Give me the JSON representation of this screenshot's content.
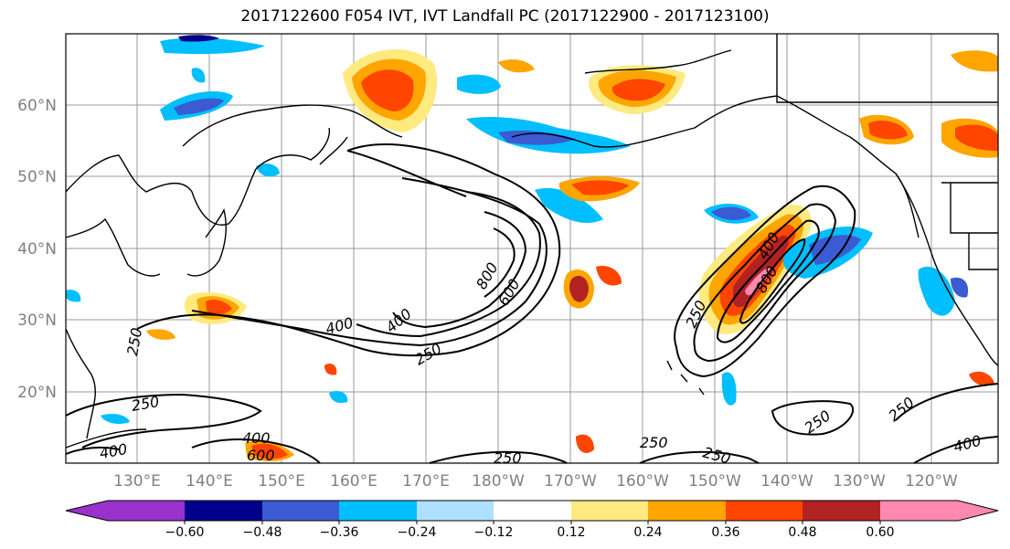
{
  "title": "2017122600 F054 IVT, IVT Landfall PC (2017122900 - 2017123100)",
  "map": {
    "lon_labels": [
      "130°E",
      "140°E",
      "150°E",
      "160°E",
      "170°E",
      "180°W",
      "170°W",
      "160°W",
      "150°W",
      "140°W",
      "130°W",
      "120°W"
    ],
    "lat_labels": [
      "60°N",
      "50°N",
      "40°N",
      "30°N",
      "20°N"
    ],
    "contour_labels": [
      "250",
      "400",
      "250",
      "400",
      "600",
      "250",
      "400",
      "800",
      "600",
      "400",
      "250",
      "250",
      "800",
      "400",
      "250",
      "250",
      "250",
      "400",
      "250"
    ]
  },
  "colorbar": {
    "ticks": [
      "−0.60",
      "−0.48",
      "−0.36",
      "−0.24",
      "−0.12",
      "0.12",
      "0.24",
      "0.36",
      "0.48",
      "0.60"
    ],
    "colors": [
      "#9932cc",
      "#00008b",
      "#3a5bd1",
      "#00bfff",
      "#b0e0ff",
      "#ffffff",
      "#ffea80",
      "#ffa500",
      "#ff4500",
      "#b22222",
      "#ff88b0"
    ]
  },
  "colors": {
    "grid": "#999999",
    "coast": "#000000",
    "contour": "#000000"
  }
}
